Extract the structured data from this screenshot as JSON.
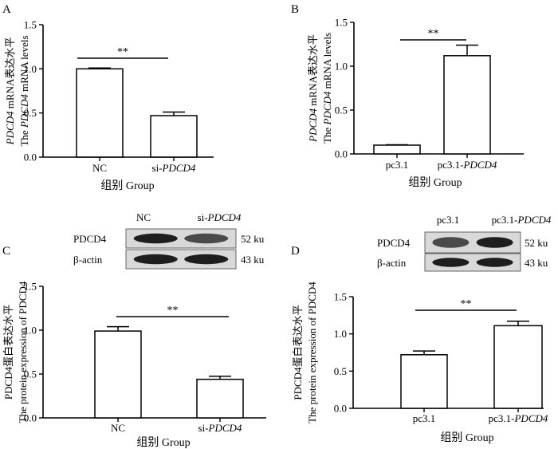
{
  "chart_data": [
    {
      "panel": "A",
      "type": "bar",
      "ylabel_cn_pre": "PDCD4",
      "ylabel_cn_post": " mRNA表达水平",
      "ylabel_en_pre": "The ",
      "ylabel_en_gene": "PDCD4",
      "ylabel_en_post": " mRNA levels",
      "xlabel": "组别  Group",
      "ylim": [
        0,
        1.5
      ],
      "yticks": [
        "0.0",
        "0.5",
        "1.0",
        "1.5"
      ],
      "categories": [
        {
          "pre": "NC",
          "gene": ""
        },
        {
          "pre": "si-",
          "gene": "PDCD4"
        }
      ],
      "values": [
        1.0,
        0.47
      ],
      "errors": [
        0.01,
        0.04
      ],
      "significance": "**"
    },
    {
      "panel": "B",
      "type": "bar",
      "ylabel_cn_pre": "PDCD4",
      "ylabel_cn_post": " mRNA表达水平",
      "ylabel_en_pre": "The ",
      "ylabel_en_gene": "PDCD4",
      "ylabel_en_post": " mRNA levels",
      "xlabel": "组别  Group",
      "ylim": [
        0,
        1.5
      ],
      "yticks": [
        "0.0",
        "0.5",
        "1.0",
        "1.5"
      ],
      "categories": [
        {
          "pre": "pc3.1",
          "gene": ""
        },
        {
          "pre": "pc3.1-",
          "gene": "PDCD4"
        }
      ],
      "values": [
        0.1,
        1.12
      ],
      "errors": [
        0.005,
        0.12
      ],
      "significance": "**"
    },
    {
      "panel": "C",
      "type": "bar",
      "ylabel_cn": "PDCD4蛋白表达水平",
      "ylabel_en": "The protein expression of PDCD4",
      "xlabel": "组别  Group",
      "ylim": [
        0,
        1.5
      ],
      "yticks": [
        "0.0",
        "0.5",
        "1.0",
        "1.5"
      ],
      "categories": [
        {
          "pre": "NC",
          "gene": ""
        },
        {
          "pre": "si-",
          "gene": "PDCD4"
        }
      ],
      "values": [
        0.99,
        0.44
      ],
      "errors": [
        0.05,
        0.035
      ],
      "significance": "**",
      "blot": {
        "lanes": [
          {
            "pre": "NC",
            "gene": ""
          },
          {
            "pre": "si-",
            "gene": "PDCD4"
          }
        ],
        "rows": [
          {
            "protein": "PDCD4",
            "size": "52 ku"
          },
          {
            "protein": "β-actin",
            "size": "43 ku"
          }
        ]
      }
    },
    {
      "panel": "D",
      "type": "bar",
      "ylabel_cn": "PDCD4蛋白表达水平",
      "ylabel_en": "The protein expression of PDCD4",
      "xlabel": "组别  Group",
      "ylim": [
        0,
        1.5
      ],
      "yticks": [
        "0.0",
        "0.5",
        "1.0",
        "1.5"
      ],
      "categories": [
        {
          "pre": "pc3.1",
          "gene": ""
        },
        {
          "pre": "pc3.1-",
          "gene": "PDCD4"
        }
      ],
      "values": [
        0.72,
        1.11
      ],
      "errors": [
        0.05,
        0.06
      ],
      "significance": "**",
      "blot": {
        "lanes": [
          {
            "pre": "pc3.1",
            "gene": ""
          },
          {
            "pre": "pc3.1-",
            "gene": "PDCD4"
          }
        ],
        "rows": [
          {
            "protein": "PDCD4",
            "size": "52 ku"
          },
          {
            "protein": "β-actin",
            "size": "43 ku"
          }
        ]
      }
    }
  ]
}
